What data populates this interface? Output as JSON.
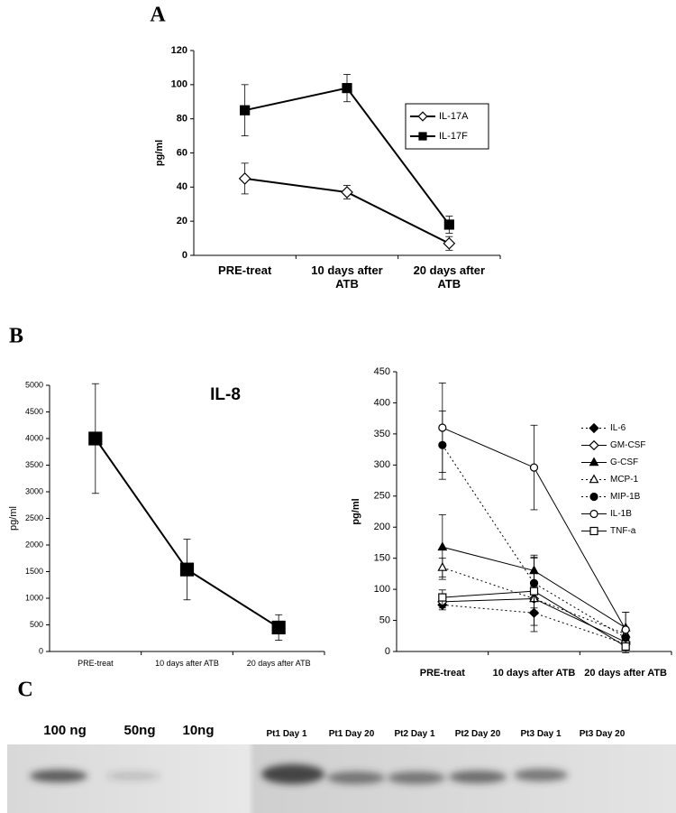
{
  "panels": [
    "A",
    "B",
    "C"
  ],
  "chart_data": [
    {
      "type": "line",
      "y_label": "pg/ml",
      "categories": [
        "PRE-treat",
        "10 days after ATB",
        "20 days after ATB"
      ],
      "ylim": [
        0,
        120
      ],
      "yticks": [
        0,
        20,
        40,
        60,
        80,
        100,
        120
      ],
      "legend": "right",
      "series": [
        {
          "name": "IL-17A",
          "color": "#000000",
          "marker": "diamond-open",
          "dash": false,
          "values": [
            45,
            37,
            7
          ],
          "errors": [
            9,
            4,
            4
          ]
        },
        {
          "name": "IL-17F",
          "color": "#000000",
          "marker": "square-filled",
          "dash": false,
          "values": [
            85,
            98,
            18
          ],
          "errors": [
            15,
            8,
            5
          ]
        }
      ]
    },
    {
      "type": "line",
      "title": "IL-8",
      "y_label": "pg/ml",
      "categories": [
        "PRE-treat",
        "10 days after ATB",
        "20 days after ATB"
      ],
      "ylim": [
        0,
        5000
      ],
      "yticks": [
        0,
        500,
        1000,
        1500,
        2000,
        2500,
        3000,
        3500,
        4000,
        4500,
        5000
      ],
      "color": "#000000",
      "marker": "square-filled",
      "values": [
        4000,
        1540,
        450
      ],
      "errors": [
        1030,
        570,
        240
      ]
    },
    {
      "type": "line",
      "y_label": "pg/ml",
      "categories": [
        "PRE-treat",
        "10 days after ATB",
        "20 days after ATB"
      ],
      "ylim": [
        0,
        450
      ],
      "yticks": [
        0,
        50,
        100,
        150,
        200,
        250,
        300,
        350,
        400,
        450
      ],
      "legend": "right",
      "series": [
        {
          "name": "IL-6",
          "color": "#000000",
          "marker": "diamond-filled",
          "dash": true,
          "values": [
            75,
            62,
            12
          ],
          "errors": [
            8,
            30,
            10
          ]
        },
        {
          "name": "GM-CSF",
          "color": "#000000",
          "marker": "diamond-open",
          "dash": false,
          "values": [
            80,
            85,
            15
          ],
          "errors": [
            10,
            20,
            10
          ]
        },
        {
          "name": "G-CSF",
          "color": "#000000",
          "marker": "triangle-filled",
          "dash": false,
          "values": [
            168,
            130,
            38
          ],
          "errors": [
            52,
            25,
            25
          ]
        },
        {
          "name": "MCP-1",
          "color": "#000000",
          "marker": "triangle-open",
          "dash": true,
          "values": [
            135,
            85,
            28
          ],
          "errors": [
            15,
            20,
            10
          ]
        },
        {
          "name": "MIP-1B",
          "color": "#000000",
          "marker": "circle-filled",
          "dash": true,
          "values": [
            332,
            110,
            22
          ],
          "errors": [
            55,
            40,
            10
          ]
        },
        {
          "name": "IL-1B",
          "color": "#000000",
          "marker": "circle-open",
          "dash": false,
          "values": [
            360,
            296,
            35
          ],
          "errors": [
            72,
            68,
            28
          ]
        },
        {
          "name": "TNF-a",
          "color": "#000000",
          "marker": "square-open",
          "dash": false,
          "values": [
            87,
            97,
            8
          ],
          "errors": [
            12,
            55,
            10
          ]
        }
      ]
    }
  ],
  "blot": {
    "lanes": [
      "100 ng",
      "50ng",
      "10ng",
      "Pt1 Day 1",
      "Pt1 Day 20",
      "Pt2 Day 1",
      "Pt2 Day 20",
      "Pt3 Day 1",
      "Pt3 Day 20"
    ]
  }
}
